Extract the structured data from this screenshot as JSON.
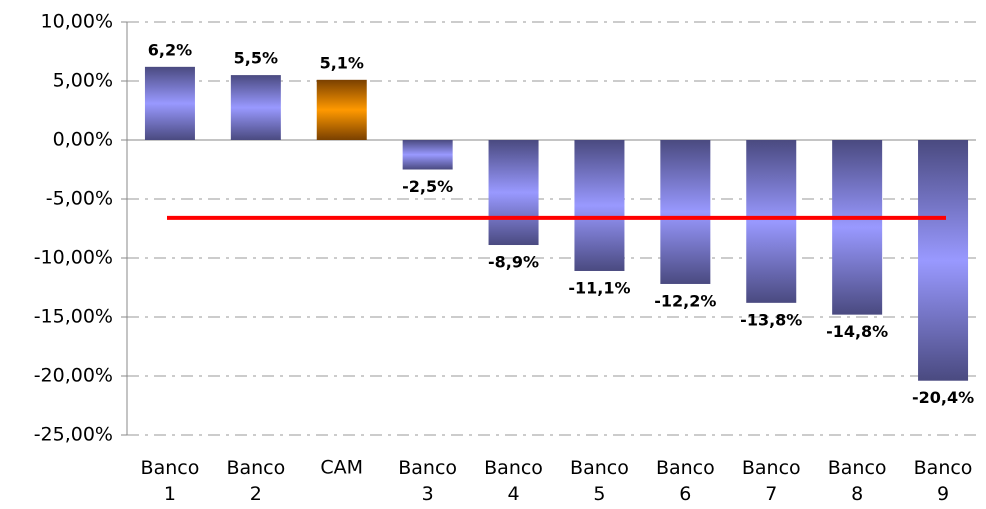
{
  "chart_data": {
    "type": "bar",
    "categories": [
      "Banco 1",
      "Banco 2",
      "CAM",
      "Banco 3",
      "Banco 4",
      "Banco 5",
      "Banco 6",
      "Banco 7",
      "Banco 8",
      "Banco 9"
    ],
    "values": [
      6.2,
      5.5,
      5.1,
      -2.5,
      -8.9,
      -11.1,
      -12.2,
      -13.8,
      -14.8,
      -20.4
    ],
    "value_labels": [
      "6,2%",
      "5,5%",
      "5,1%",
      "-2,5%",
      "-8,9%",
      "-11,1%",
      "-12,2%",
      "-13,8%",
      "-14,8%",
      "-20,4%"
    ],
    "colors": [
      "#9999ff",
      "#9999ff",
      "#ff9900",
      "#9999ff",
      "#9999ff",
      "#9999ff",
      "#9999ff",
      "#9999ff",
      "#9999ff",
      "#9999ff"
    ],
    "ylim": [
      -25,
      10
    ],
    "yticks": [
      {
        "value": -25,
        "label": "-25,00%"
      },
      {
        "value": -20,
        "label": "-20,00%"
      },
      {
        "value": -15,
        "label": "-15,00%"
      },
      {
        "value": -10,
        "label": "-10,00%"
      },
      {
        "value": -5,
        "label": "-5,00%"
      },
      {
        "value": 0,
        "label": "0,00%"
      },
      {
        "value": 5,
        "label": "5,00%"
      },
      {
        "value": 10,
        "label": "10,00%"
      }
    ],
    "grid": true,
    "reference_line": {
      "value": -6.6,
      "color": "#ff0000"
    }
  }
}
